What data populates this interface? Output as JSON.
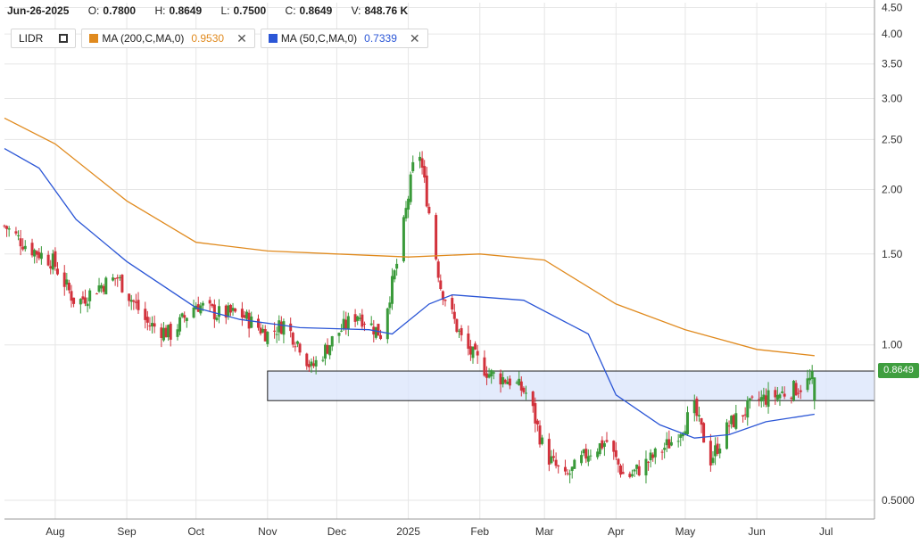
{
  "header": {
    "date": "Jun-26-2025",
    "open_label": "O:",
    "open": "0.7800",
    "high_label": "H:",
    "high": "0.8649",
    "low_label": "L:",
    "low": "0.7500",
    "close_label": "C:",
    "close": "0.8649",
    "volume_label": "V:",
    "volume": "848.76 K"
  },
  "legend": {
    "symbol": "LIDR",
    "ma200_label": "MA (200,C,MA,0)",
    "ma200_value": "0.9530",
    "ma50_label": "MA (50,C,MA,0)",
    "ma50_value": "0.7339"
  },
  "last_price_tag": "0.8649",
  "colors": {
    "up": "#3a9a3a",
    "down": "#d2323c",
    "ma200": "#e08a1e",
    "ma50": "#2b56d6",
    "zone_fill": "#dce6fb",
    "zone_border": "#222222",
    "price_tag": "#3f9e3f"
  },
  "chart_data": {
    "type": "candlestick",
    "symbol": "LIDR",
    "yscale": "log",
    "ylim": [
      0.46,
      4.6
    ],
    "y_ticks": [
      "4.50",
      "4.00",
      "3.50",
      "3.00",
      "2.50",
      "2.00",
      "1.50",
      "1.00",
      "0.5000"
    ],
    "y_tick_values": [
      4.5,
      4.0,
      3.5,
      3.0,
      2.5,
      2.0,
      1.5,
      1.0,
      0.5
    ],
    "x_ticks": [
      "Aug",
      "Sep",
      "Oct",
      "Nov",
      "Dec",
      "2025",
      "Feb",
      "Mar",
      "Apr",
      "May",
      "Jun",
      "Jul"
    ],
    "x_tick_dates": [
      "2024-08-01",
      "2024-09-01",
      "2024-10-01",
      "2024-11-01",
      "2024-12-01",
      "2025-01-01",
      "2025-02-01",
      "2025-03-01",
      "2025-04-01",
      "2025-05-01",
      "2025-06-01",
      "2025-07-01"
    ],
    "x_range": [
      "2024-07-10",
      "2025-07-22"
    ],
    "grid": true,
    "close_path": [
      [
        "2024-07-10",
        1.7
      ],
      [
        "2024-07-20",
        1.55
      ],
      [
        "2024-07-31",
        1.45
      ],
      [
        "2024-08-10",
        1.2
      ],
      [
        "2024-08-20",
        1.3
      ],
      [
        "2024-08-28",
        1.35
      ],
      [
        "2024-09-10",
        1.1
      ],
      [
        "2024-09-20",
        1.05
      ],
      [
        "2024-10-01",
        1.2
      ],
      [
        "2024-10-10",
        1.15
      ],
      [
        "2024-10-20",
        1.15
      ],
      [
        "2024-11-01",
        1.05
      ],
      [
        "2024-11-08",
        1.1
      ],
      [
        "2024-11-15",
        1.0
      ],
      [
        "2024-11-20",
        0.9
      ],
      [
        "2024-12-01",
        1.05
      ],
      [
        "2024-12-10",
        1.15
      ],
      [
        "2024-12-20",
        1.05
      ],
      [
        "2024-12-28",
        1.5
      ],
      [
        "2025-01-05",
        2.5
      ],
      [
        "2025-01-15",
        1.3
      ],
      [
        "2025-01-25",
        1.0
      ],
      [
        "2025-02-05",
        0.88
      ],
      [
        "2025-02-15",
        0.85
      ],
      [
        "2025-02-22",
        0.8
      ],
      [
        "2025-03-01",
        0.62
      ],
      [
        "2025-03-10",
        0.55
      ],
      [
        "2025-03-20",
        0.62
      ],
      [
        "2025-03-28",
        0.65
      ],
      [
        "2025-04-05",
        0.55
      ],
      [
        "2025-04-12",
        0.58
      ],
      [
        "2025-04-25",
        0.65
      ],
      [
        "2025-05-05",
        0.75
      ],
      [
        "2025-05-12",
        0.6
      ],
      [
        "2025-05-20",
        0.7
      ],
      [
        "2025-06-01",
        0.78
      ],
      [
        "2025-06-10",
        0.8
      ],
      [
        "2025-06-20",
        0.83
      ],
      [
        "2025-06-26",
        0.8649
      ]
    ],
    "last_candle": {
      "date": "2025-06-26",
      "open": 0.78,
      "high": 0.8649,
      "low": 0.75,
      "close": 0.8649,
      "volume": "848.76 K"
    },
    "series": [
      {
        "name": "MA (200,C,MA,0)",
        "points": [
          [
            "2024-07-10",
            2.75
          ],
          [
            "2024-08-01",
            2.45
          ],
          [
            "2024-09-01",
            1.9
          ],
          [
            "2024-10-01",
            1.58
          ],
          [
            "2024-11-01",
            1.52
          ],
          [
            "2024-12-01",
            1.5
          ],
          [
            "2025-01-01",
            1.48
          ],
          [
            "2025-02-01",
            1.5
          ],
          [
            "2025-03-01",
            1.46
          ],
          [
            "2025-04-01",
            1.2
          ],
          [
            "2025-05-01",
            1.07
          ],
          [
            "2025-06-01",
            0.98
          ],
          [
            "2025-06-26",
            0.953
          ]
        ]
      },
      {
        "name": "MA (50,C,MA,0)",
        "points": [
          [
            "2024-07-10",
            2.4
          ],
          [
            "2024-07-25",
            2.2
          ],
          [
            "2024-08-10",
            1.75
          ],
          [
            "2024-09-01",
            1.45
          ],
          [
            "2024-10-01",
            1.18
          ],
          [
            "2024-10-20",
            1.12
          ],
          [
            "2024-11-15",
            1.08
          ],
          [
            "2024-12-15",
            1.07
          ],
          [
            "2024-12-25",
            1.05
          ],
          [
            "2025-01-10",
            1.2
          ],
          [
            "2025-01-20",
            1.25
          ],
          [
            "2025-02-20",
            1.22
          ],
          [
            "2025-03-20",
            1.05
          ],
          [
            "2025-04-01",
            0.8
          ],
          [
            "2025-04-20",
            0.7
          ],
          [
            "2025-05-05",
            0.66
          ],
          [
            "2025-05-20",
            0.67
          ],
          [
            "2025-06-05",
            0.71
          ],
          [
            "2025-06-26",
            0.7339
          ]
        ]
      }
    ],
    "zone": {
      "from": "2024-11-01",
      "to": "2025-07-22",
      "low": 0.78,
      "high": 0.89
    }
  }
}
